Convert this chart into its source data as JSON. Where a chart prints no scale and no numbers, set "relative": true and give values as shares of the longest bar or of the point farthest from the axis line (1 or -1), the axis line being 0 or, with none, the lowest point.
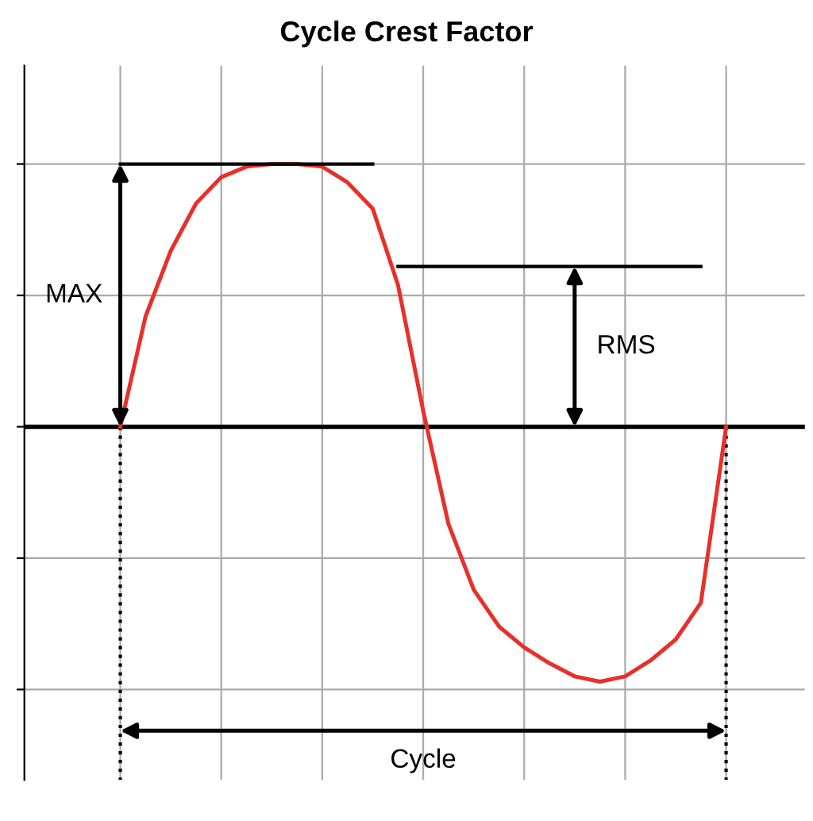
{
  "chart_data": {
    "type": "line",
    "title": "Cycle Crest Factor",
    "relative": true,
    "grid": true,
    "marker": "none",
    "line_style": "solid",
    "categories": [
      null,
      null,
      null,
      null,
      null,
      null,
      null,
      null,
      null,
      null,
      null,
      null,
      null,
      null,
      null,
      null,
      null,
      null,
      null,
      null,
      null,
      null,
      null,
      null,
      null
    ],
    "series": [
      {
        "color": "#e8302a",
        "values": [
          0,
          0.42,
          0.67,
          0.85,
          0.95,
          0.99,
          1,
          1,
          0.99,
          0.93,
          0.83,
          0.54,
          0.06,
          -0.37,
          -0.62,
          -0.76,
          -0.84,
          -0.9,
          -0.95,
          -0.97,
          -0.95,
          -0.89,
          -0.81,
          -0.67,
          0
        ]
      },
      {
        "color": "#000000",
        "values": [
          1,
          1,
          1,
          1,
          1,
          1,
          1,
          1,
          1,
          1,
          1,
          null,
          null,
          null,
          null,
          null,
          null,
          null,
          null,
          null,
          null,
          null,
          null,
          null,
          null
        ]
      },
      {
        "color": "#000000",
        "values": [
          null,
          null,
          null,
          null,
          null,
          null,
          null,
          null,
          null,
          null,
          null,
          0.61,
          0.61,
          0.61,
          0.61,
          0.61,
          0.61,
          0.61,
          0.61,
          0.61,
          0.61,
          0.61,
          0.61,
          0.61,
          null
        ]
      }
    ],
    "annotations": [
      "MAX",
      "RMS",
      "Cycle"
    ]
  }
}
